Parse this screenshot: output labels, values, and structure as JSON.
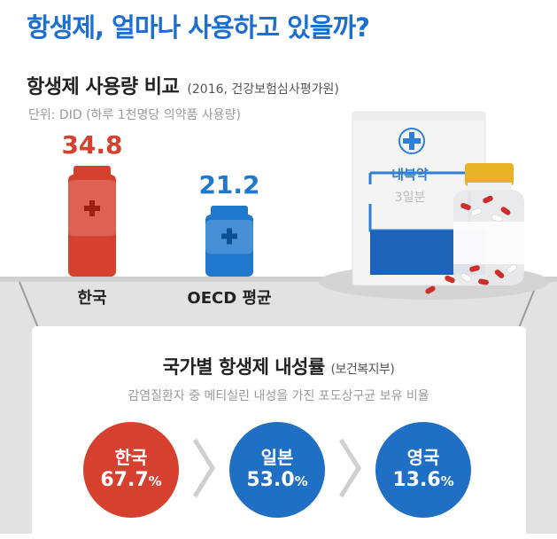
{
  "headline": "항생제, 얼마나 사용하고 있을까?",
  "chart_data": {
    "type": "bar",
    "title": "항생제 사용량 비교",
    "source": "(2016, 건강보험심사평가원)",
    "unit": "단위: DID (하루 1천명당 의약품 사용량)",
    "categories": [
      "한국",
      "OECD 평균"
    ],
    "values": [
      34.8,
      21.2
    ],
    "value_labels": [
      "34.8",
      "21.2"
    ],
    "colors": [
      "#d6402f",
      "#1f78cc"
    ]
  },
  "medicine_box": {
    "label": "내복약",
    "sublabel": "3일분"
  },
  "resistance": {
    "title": "국가별 항생제 내성률",
    "source": "(보건복지부)",
    "subtitle": "감염질환자 중 메티실린 내성을 가진 포도상구균 보유 비율",
    "items": [
      {
        "country": "한국",
        "value": "67.7",
        "unit": "%",
        "color": "#d6402f"
      },
      {
        "country": "일본",
        "value": "53.0",
        "unit": "%",
        "color": "#1f6fc4"
      },
      {
        "country": "영국",
        "value": "13.6",
        "unit": "%",
        "color": "#1f6fc4"
      }
    ]
  },
  "colors": {
    "headline": "#1c6fd1",
    "red": "#d6402f",
    "blue": "#1f78cc",
    "shelf": "#e2e2e2"
  }
}
